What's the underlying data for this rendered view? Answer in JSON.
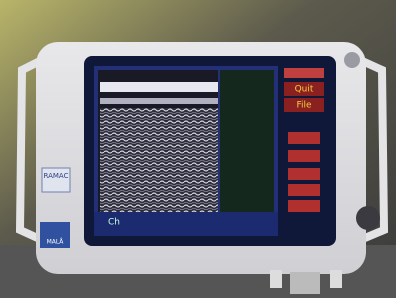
{
  "screen": {
    "buttons": [
      "Quit",
      "File"
    ]
  },
  "brand": {
    "logo": "RAMAC",
    "maker": "MALÅ"
  }
}
